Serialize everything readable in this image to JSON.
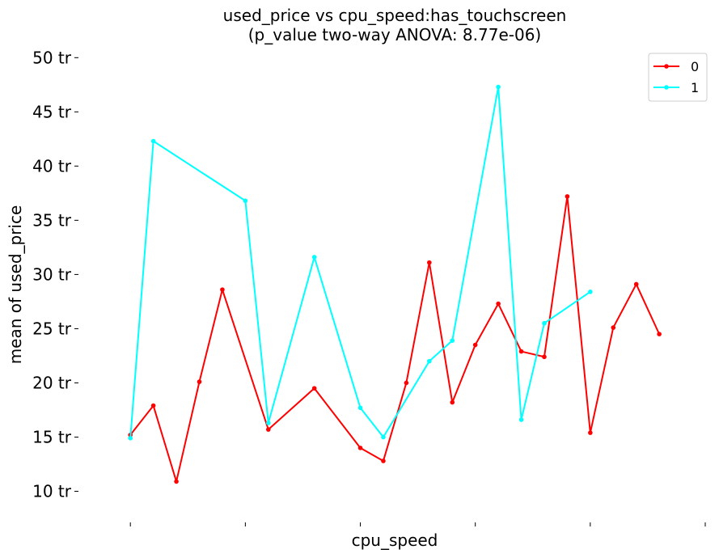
{
  "chart_data": {
    "type": "line",
    "title_line1": "used_price vs cpu_speed:has_touchscreen",
    "title_line2": "(p_value two-way ANOVA: 8.77e-06)",
    "xlabel": "cpu_speed",
    "ylabel": "mean of used_price",
    "ylim": [
      7.5,
      50.5
    ],
    "y_ticks": [
      {
        "value": 10,
        "label": "10 tr"
      },
      {
        "value": 15,
        "label": "15 tr"
      },
      {
        "value": 20,
        "label": "20 tr"
      },
      {
        "value": 25,
        "label": "25 tr"
      },
      {
        "value": 30,
        "label": "30 tr"
      },
      {
        "value": 35,
        "label": "35 tr"
      },
      {
        "value": 40,
        "label": "40 tr"
      },
      {
        "value": 45,
        "label": "45 tr"
      },
      {
        "value": 50,
        "label": "50 tr"
      }
    ],
    "x_ticks": [
      0,
      5,
      10,
      15,
      20,
      25
    ],
    "xlim": [
      -0.5,
      25
    ],
    "legend_position": "top-right",
    "grid": false,
    "series": [
      {
        "name": "0",
        "color": "#ff0000",
        "points": [
          [
            0,
            15.2
          ],
          [
            1,
            17.9
          ],
          [
            2,
            10.9
          ],
          [
            3,
            20.1
          ],
          [
            4,
            28.6
          ],
          [
            6,
            15.7
          ],
          [
            8,
            19.5
          ],
          [
            10,
            14.0
          ],
          [
            11,
            12.8
          ],
          [
            12,
            20.0
          ],
          [
            13,
            31.1
          ],
          [
            14,
            18.2
          ],
          [
            15,
            23.5
          ],
          [
            16,
            27.3
          ],
          [
            17,
            22.9
          ],
          [
            18,
            22.4
          ],
          [
            19,
            37.2
          ],
          [
            20,
            15.4
          ],
          [
            21,
            25.1
          ],
          [
            22,
            29.1
          ],
          [
            23,
            24.5
          ]
        ]
      },
      {
        "name": "1",
        "color": "#00ffff",
        "points": [
          [
            0,
            14.9
          ],
          [
            1,
            42.3
          ],
          [
            5,
            36.8
          ],
          [
            6,
            16.3
          ],
          [
            8,
            31.6
          ],
          [
            10,
            17.7
          ],
          [
            11,
            15.0
          ],
          [
            13,
            22.0
          ],
          [
            14,
            23.9
          ],
          [
            16,
            47.3
          ],
          [
            17,
            16.6
          ],
          [
            18,
            25.5
          ],
          [
            20,
            28.4
          ]
        ]
      }
    ]
  }
}
